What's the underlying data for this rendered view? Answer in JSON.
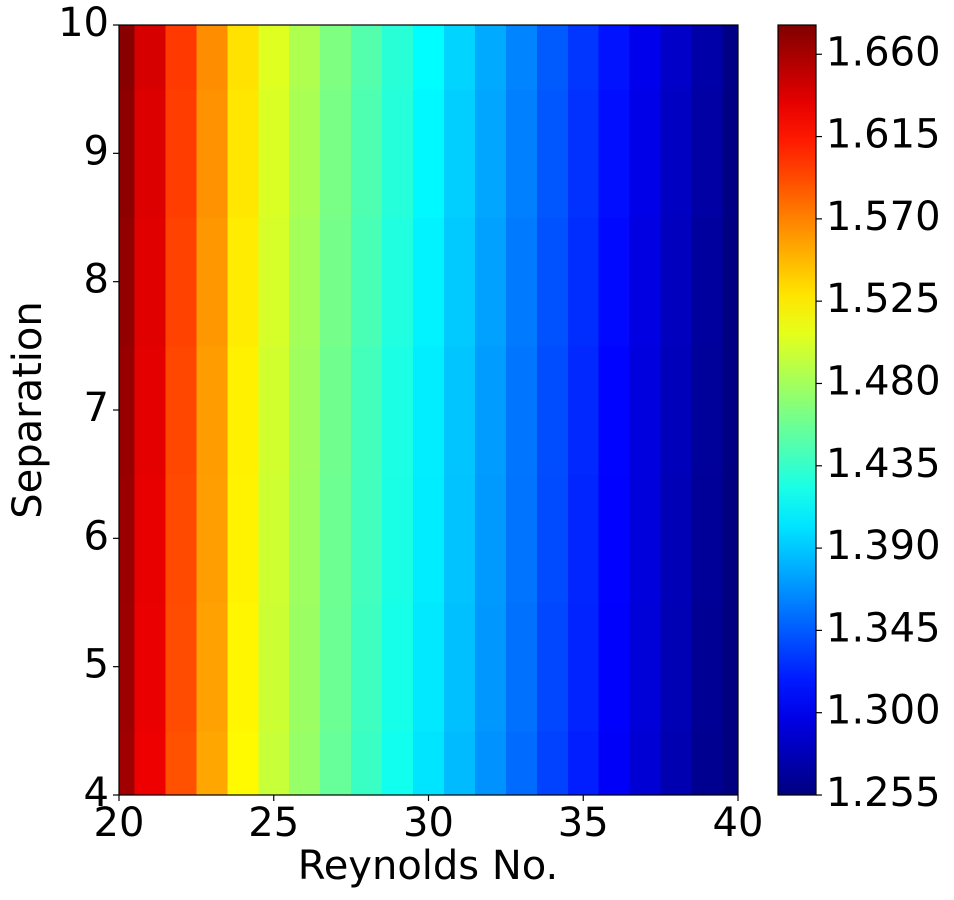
{
  "chart_data": {
    "type": "contour",
    "colormap": "jet",
    "xlabel": "Reynolds No.",
    "ylabel": "Separation",
    "x": [
      20,
      21,
      22,
      23,
      24,
      25,
      26,
      27,
      28,
      29,
      30,
      31,
      32,
      33,
      34,
      35,
      36,
      37,
      38,
      39,
      40
    ],
    "y": [
      4,
      5,
      6,
      7,
      8,
      9,
      10
    ],
    "z": [
      [
        1.662,
        1.63,
        1.59,
        1.555,
        1.52,
        1.495,
        1.475,
        1.455,
        1.437,
        1.42,
        1.402,
        1.385,
        1.368,
        1.352,
        1.335,
        1.32,
        1.305,
        1.29,
        1.275,
        1.262,
        1.255
      ],
      [
        1.664,
        1.632,
        1.592,
        1.557,
        1.522,
        1.497,
        1.477,
        1.457,
        1.439,
        1.422,
        1.404,
        1.387,
        1.37,
        1.354,
        1.337,
        1.322,
        1.307,
        1.292,
        1.277,
        1.264,
        1.255
      ],
      [
        1.665,
        1.633,
        1.593,
        1.558,
        1.523,
        1.498,
        1.478,
        1.458,
        1.44,
        1.423,
        1.405,
        1.388,
        1.371,
        1.355,
        1.338,
        1.323,
        1.308,
        1.293,
        1.278,
        1.265,
        1.255
      ],
      [
        1.666,
        1.634,
        1.594,
        1.559,
        1.524,
        1.499,
        1.479,
        1.459,
        1.441,
        1.424,
        1.406,
        1.389,
        1.372,
        1.356,
        1.339,
        1.324,
        1.309,
        1.294,
        1.279,
        1.266,
        1.256
      ],
      [
        1.668,
        1.636,
        1.596,
        1.561,
        1.526,
        1.501,
        1.481,
        1.461,
        1.443,
        1.426,
        1.408,
        1.391,
        1.374,
        1.358,
        1.341,
        1.326,
        1.311,
        1.296,
        1.281,
        1.268,
        1.256
      ],
      [
        1.67,
        1.638,
        1.598,
        1.563,
        1.528,
        1.503,
        1.483,
        1.463,
        1.445,
        1.428,
        1.41,
        1.393,
        1.376,
        1.36,
        1.343,
        1.328,
        1.313,
        1.298,
        1.283,
        1.27,
        1.257
      ],
      [
        1.672,
        1.64,
        1.6,
        1.565,
        1.53,
        1.505,
        1.485,
        1.465,
        1.447,
        1.43,
        1.412,
        1.395,
        1.378,
        1.362,
        1.345,
        1.33,
        1.315,
        1.3,
        1.285,
        1.272,
        1.258
      ]
    ],
    "xlim": [
      20,
      40
    ],
    "ylim": [
      4,
      10
    ],
    "xticks": [
      20,
      25,
      30,
      35,
      40
    ],
    "yticks": [
      4,
      5,
      6,
      7,
      8,
      9,
      10
    ],
    "zlim": [
      1.255,
      1.676
    ],
    "zticks": [
      1.255,
      {
        "value": 1.3,
        "label": "1.300"
      },
      1.345,
      {
        "value": 1.39,
        "label": "1.390"
      },
      1.435,
      {
        "value": 1.48,
        "label": "1.480"
      },
      1.525,
      {
        "value": 1.57,
        "label": "1.570"
      },
      1.615,
      {
        "value": 1.66,
        "label": "1.660"
      }
    ]
  }
}
